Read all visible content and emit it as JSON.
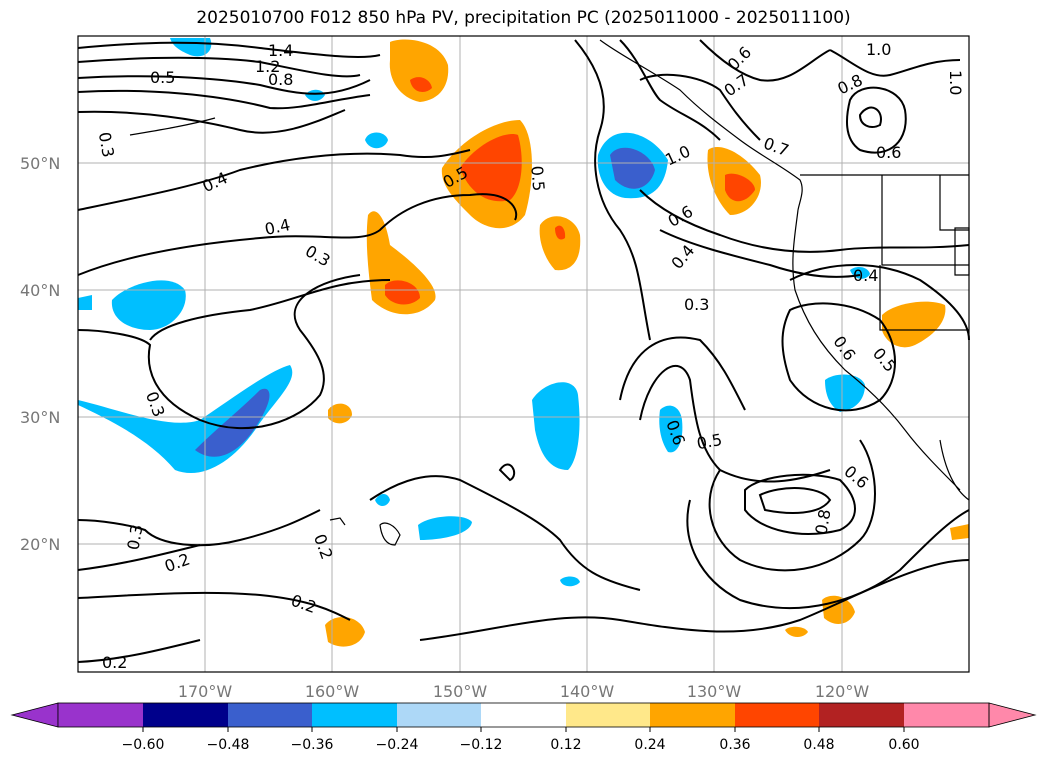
{
  "title": "2025010700 F012 850 hPa PV, precipitation PC (2025011000 - 2025011100)",
  "lat_labels": [
    "50°N",
    "40°N",
    "30°N",
    "20°N"
  ],
  "lon_labels": [
    "170°W",
    "160°W",
    "150°W",
    "140°W",
    "130°W",
    "120°W"
  ],
  "contour_labels": [
    "1.4",
    "1.2",
    "0.8",
    "0.5",
    "0.3",
    "0.4",
    "0.4",
    "0.3",
    "0.5",
    "0.5",
    "0.6",
    "0.7",
    "1.0",
    "0.6",
    "0.4",
    "0.3",
    "0.7",
    "0.8",
    "0.6",
    "1.0",
    "0.4",
    "0.6",
    "0.5",
    "0.3",
    "0.6",
    "0.5",
    "0.6",
    "0.8",
    "0.3",
    "0.2",
    "0.2",
    "0.2",
    "0.2",
    "1.0"
  ],
  "colorbar": {
    "ticks": [
      "−0.60",
      "−0.48",
      "−0.36",
      "−0.24",
      "−0.12",
      "0.12",
      "0.24",
      "0.36",
      "0.48",
      "0.60"
    ],
    "colors": [
      "#9933cc",
      "#00008b",
      "#3a5fcd",
      "#00bfff",
      "#add8f7",
      "#ffffff",
      "#ffe88a",
      "#ffa500",
      "#ff4500",
      "#b22222",
      "#ff88aa"
    ]
  },
  "colors": {
    "grid": "#b0b0b0",
    "contour": "#000000",
    "axis_label": "#777777"
  }
}
